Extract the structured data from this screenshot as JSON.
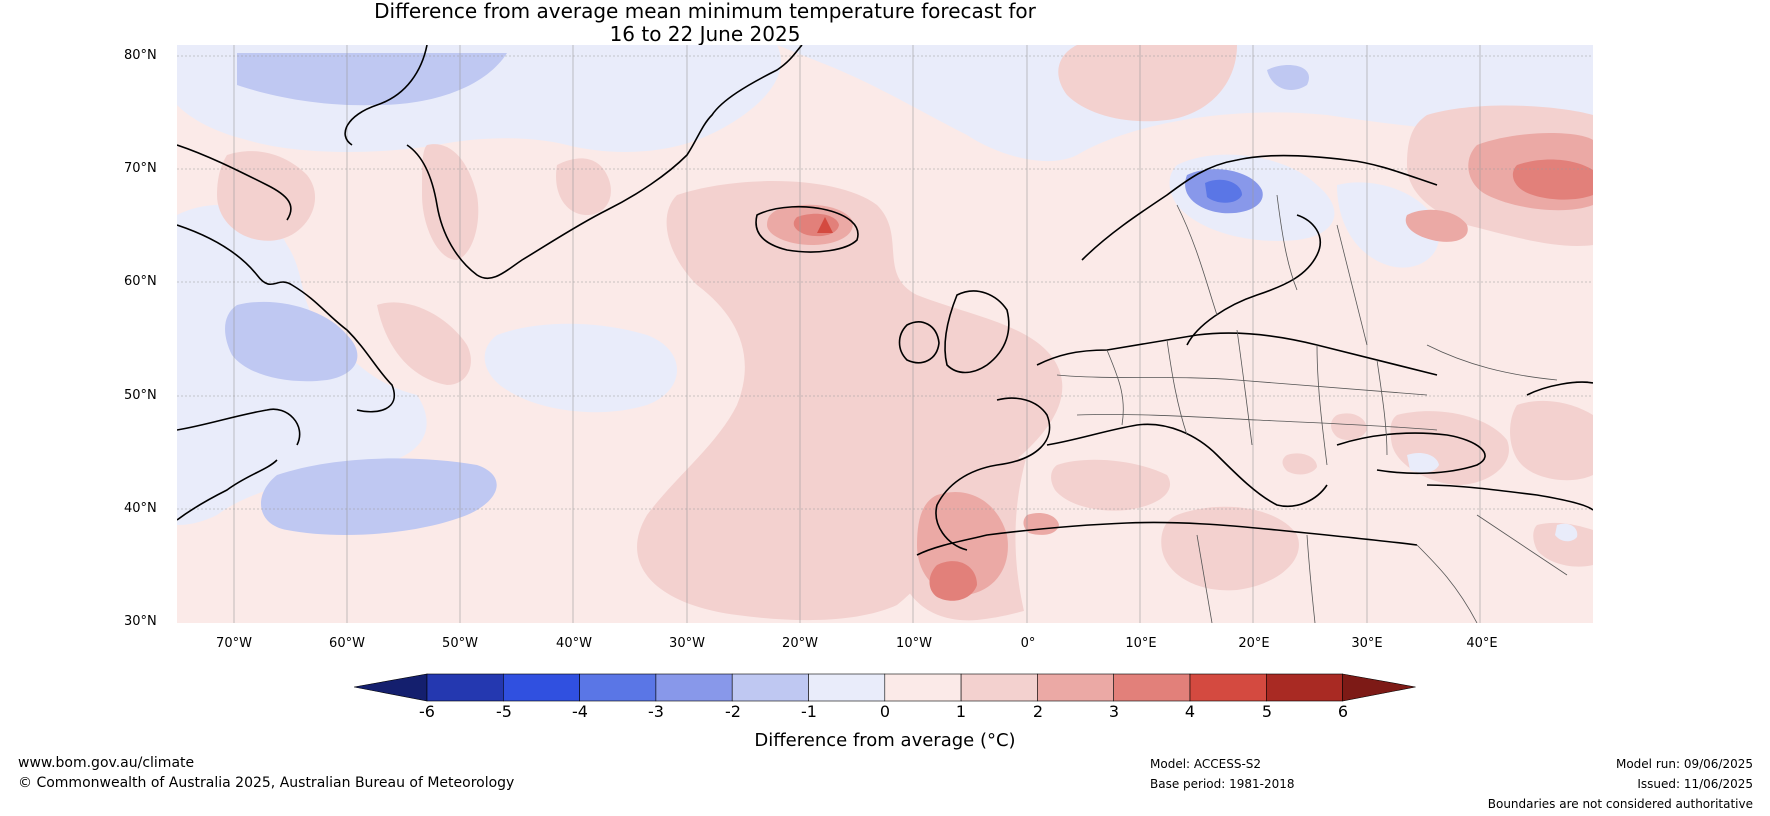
{
  "title": {
    "line1": "Difference from average mean minimum temperature forecast for",
    "line2": "16 to 22 June 2025"
  },
  "map": {
    "projection": "equirectangular",
    "lat_labels": [
      "80°N",
      "70°N",
      "60°N",
      "50°N",
      "40°N",
      "30°N"
    ],
    "lon_labels": [
      "70°W",
      "60°W",
      "50°W",
      "40°W",
      "30°W",
      "20°W",
      "10°W",
      "0°",
      "10°E",
      "20°E",
      "30°E",
      "40°E"
    ],
    "background_anomaly_class": "0 to 1",
    "features": [
      {
        "region": "Iceland",
        "class": "4 to 5"
      },
      {
        "region": "Northwest Russia",
        "class": "3 to 4"
      },
      {
        "region": "Svalbard",
        "class": "2 to 3"
      },
      {
        "region": "Northern Scandinavia",
        "class": "-3 to -2"
      },
      {
        "region": "Labrador / Hudson Bay",
        "class": "-2 to -1"
      },
      {
        "region": "Western North Atlantic near 40°N",
        "class": "-2 to -1"
      },
      {
        "region": "Morocco / Iberia",
        "class": "2 to 3"
      },
      {
        "region": "Eastern North Atlantic",
        "class": "1 to 2"
      }
    ]
  },
  "colorbar": {
    "label": "Difference from average (°C)",
    "ticks": [
      "-6",
      "-5",
      "-4",
      "-3",
      "-2",
      "-1",
      "0",
      "1",
      "2",
      "3",
      "4",
      "5",
      "6"
    ],
    "colors": [
      "#141f6e",
      "#2438b0",
      "#3050e0",
      "#5a76e6",
      "#8898ea",
      "#bfc8f2",
      "#e9ecfa",
      "#fbeae8",
      "#f3d1cf",
      "#eba9a5",
      "#e2807a",
      "#d44a40",
      "#a92a23",
      "#7d1a16"
    ]
  },
  "footer": {
    "url": "www.bom.gov.au/climate",
    "copyright": "© Commonwealth of Australia 2025, Australian Bureau of Meteorology",
    "model": "Model: ACCESS-S2",
    "base_period": "Base period: 1981-2018",
    "model_run": "Model run: 09/06/2025",
    "issued": "Issued: 11/06/2025",
    "disclaimer": "Boundaries are not considered authoritative"
  }
}
